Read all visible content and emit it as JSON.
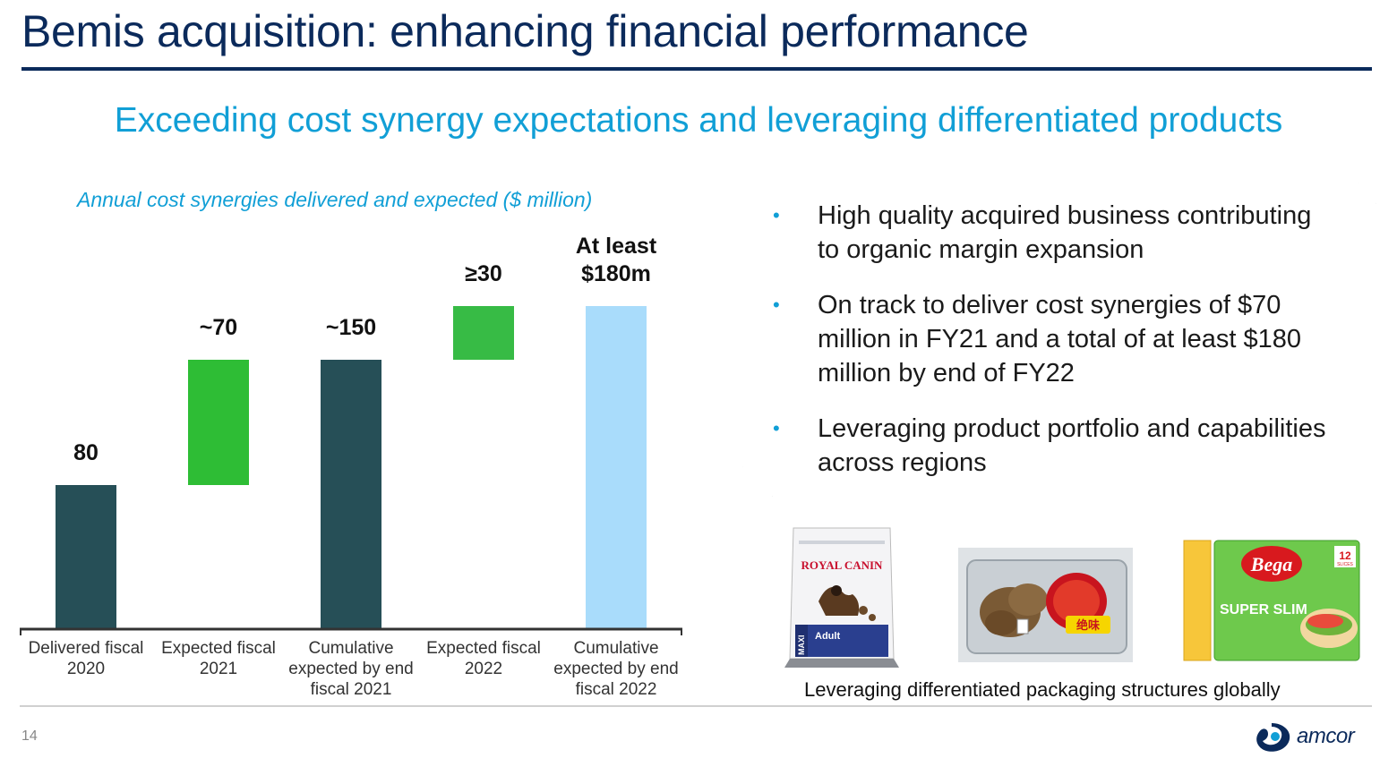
{
  "header": {
    "title": "Bemis acquisition: enhancing financial performance",
    "subtitle": "Exceeding cost synergy expectations and leveraging differentiated products"
  },
  "chart_caption": "Annual cost synergies delivered and expected ($ million)",
  "chart_data": {
    "type": "bar",
    "subtype": "waterfall",
    "categories": [
      "Delivered fiscal 2020",
      "Expected fiscal 2021",
      "Cumulative expected by end fiscal 2021",
      "Expected fiscal 2022",
      "Cumulative expected by end fiscal 2022"
    ],
    "bars": [
      {
        "label": "80",
        "start": 0,
        "end": 80,
        "color": "#264f57"
      },
      {
        "label": "~70",
        "start": 80,
        "end": 150,
        "color": "#2ebd35"
      },
      {
        "label": "~150",
        "start": 0,
        "end": 150,
        "color": "#264f57"
      },
      {
        "label": "≥30",
        "start": 150,
        "end": 180,
        "color": "#37bb45"
      },
      {
        "label": "At least $180m",
        "start": 0,
        "end": 180,
        "color": "#a9dcfb"
      }
    ],
    "category_lines": [
      [
        "Delivered fiscal",
        "2020"
      ],
      [
        "Expected fiscal",
        "2021"
      ],
      [
        "Cumulative",
        "expected by end",
        "fiscal 2021"
      ],
      [
        "Expected fiscal",
        "2022"
      ],
      [
        "Cumulative",
        "expected by end",
        "fiscal 2022"
      ]
    ],
    "value_label_lines": [
      [
        "80"
      ],
      [
        "~70"
      ],
      [
        "~150"
      ],
      [
        "≥30"
      ],
      [
        "At least",
        "$180m"
      ]
    ],
    "ylim": [
      0,
      180
    ],
    "grid": false,
    "legend": "none",
    "ylabel": "",
    "xlabel": ""
  },
  "bullets": [
    "High quality acquired business contributing to organic margin expansion",
    "On track to deliver cost synergies of $70 million in FY21 and a total of at least $180 million by end of FY22",
    "Leveraging product portfolio and capabilities across regions"
  ],
  "bullet_symbol": "•",
  "images": {
    "dogfood": {
      "brand": "ROYAL CANIN",
      "line": "MAXI",
      "variant": "Adult"
    },
    "tray": {
      "label": "绝味"
    },
    "cheese": {
      "brand": "Bega",
      "product": "SUPER SLIM",
      "count": "12",
      "count_unit": "SLICES"
    }
  },
  "image_caption": "Leveraging differentiated packaging structures globally",
  "footer": {
    "page_number": "14",
    "logo_text": "amcor"
  },
  "colors": {
    "title": "#0b2a5b",
    "accent": "#119fd6",
    "dark_bar": "#264f57",
    "green_bar": "#2ebd35",
    "light_bar": "#a9dcfb"
  }
}
